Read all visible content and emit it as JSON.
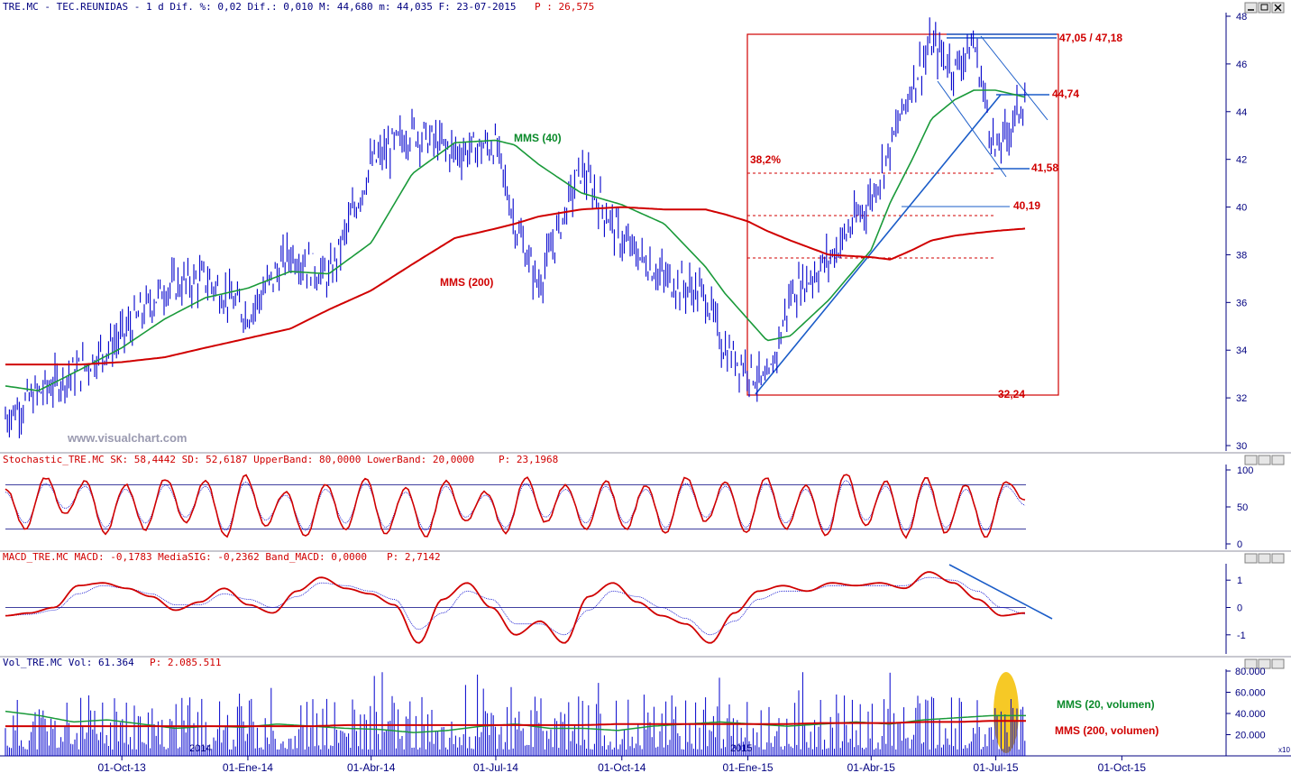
{
  "header": {
    "main": "TRE.MC - TEC.REUNIDAS -  1 d Dif. %: 0,02 Dif.: 0,010 M: 44,680 m: 44,035 F: 23-07-2015",
    "main_p": "P : 26,575",
    "stoch": "Stochastic_TRE.MC SK: 58,4442 SD: 52,6187 UpperBand: 80,0000 LowerBand: 20,0000",
    "stoch_p": "P: 23,1968",
    "macd": "MACD_TRE.MC MACD: -0,1783 MediaSIG: -0,2362 Band_MACD: 0,0000",
    "macd_p": "P: 2,7142",
    "vol": "Vol_TRE.MC Vol: 61.364",
    "vol_p": "P: 2.085.511"
  },
  "watermark": "www.visualchart.com",
  "year_labels": [
    "2014",
    "2015"
  ],
  "x_axis": [
    "01-Oct-13",
    "01-Ene-14",
    "01-Abr-14",
    "01-Jul-14",
    "01-Oct-14",
    "01-Ene-15",
    "01-Abr-15",
    "01-Jul-15",
    "01-Oct-15"
  ],
  "volume_axis_unit": "x10",
  "annotations": {
    "mms40": "MMS (40)",
    "mms200": "MMS (200)",
    "fib382": "38,2%",
    "level_4705": "47,05 / 47,18",
    "level_4474": "44,74",
    "level_4158": "41,58",
    "level_4019": "40,19",
    "level_3224": "32,24",
    "vol_mms20": "MMS (20, volumen)",
    "vol_mms200": "MMS (200, volumen)"
  },
  "colors": {
    "price": "#0000cc",
    "mms40": "#1a9a3a",
    "mms200": "#d00000",
    "axis": "#000080",
    "highlight": "#f5c000"
  },
  "chart_data": [
    {
      "type": "line",
      "title": "TRE.MC - TEC.REUNIDAS - 1 d",
      "ylim": [
        30,
        48
      ],
      "yticks": [
        30,
        32,
        34,
        36,
        38,
        40,
        42,
        44,
        46,
        48
      ],
      "x": [
        "2013-07-08",
        "2013-08-01",
        "2013-09-01",
        "2013-10-01",
        "2013-11-01",
        "2013-12-01",
        "2014-01-01",
        "2014-02-01",
        "2014-03-01",
        "2014-04-01",
        "2014-05-01",
        "2014-06-01",
        "2014-07-01",
        "2014-07-15",
        "2014-08-01",
        "2014-09-01",
        "2014-10-01",
        "2014-11-01",
        "2014-12-01",
        "2014-12-15",
        "2015-01-01",
        "2015-01-15",
        "2015-02-01",
        "2015-03-01",
        "2015-04-01",
        "2015-04-15",
        "2015-05-01",
        "2015-05-15",
        "2015-06-01",
        "2015-06-15",
        "2015-07-01",
        "2015-07-23"
      ],
      "series": [
        {
          "name": "Precio",
          "values": [
            31.2,
            32.2,
            33.2,
            34.6,
            36.6,
            37.0,
            35.5,
            38.1,
            37.0,
            41.8,
            43.2,
            42.3,
            42.6,
            39.3,
            36.7,
            41.6,
            38.6,
            37.0,
            36.3,
            34.0,
            33.3,
            32.4,
            36.3,
            37.8,
            40.4,
            42.5,
            45.2,
            46.8,
            45.8,
            46.9,
            42.2,
            44.7
          ]
        },
        {
          "name": "MMS (40)",
          "values": [
            32.5,
            32.3,
            33.2,
            34.1,
            35.3,
            36.2,
            36.6,
            37.3,
            37.2,
            38.5,
            41.4,
            42.7,
            42.8,
            42.6,
            41.8,
            40.6,
            40.1,
            39.3,
            37.5,
            36.4,
            35.3,
            34.4,
            34.6,
            36.1,
            38.2,
            40.2,
            42.0,
            43.7,
            44.5,
            44.9,
            44.9,
            44.6
          ]
        },
        {
          "name": "MMS (200)",
          "values": [
            33.4,
            33.4,
            33.4,
            33.5,
            33.7,
            34.1,
            34.5,
            34.9,
            35.7,
            36.5,
            37.6,
            38.7,
            39.1,
            39.3,
            39.6,
            39.9,
            40.0,
            39.9,
            39.9,
            39.7,
            39.4,
            39.0,
            38.6,
            38.0,
            37.9,
            37.8,
            38.2,
            38.6,
            38.8,
            38.9,
            39.0,
            39.1
          ]
        }
      ],
      "levels": [
        47.18,
        47.05,
        44.74,
        41.58,
        40.19,
        32.24
      ],
      "fib_levels": [
        41.45,
        39.65,
        37.85
      ]
    },
    {
      "type": "line",
      "title": "Stochastic_TRE.MC",
      "ylim": [
        0,
        100
      ],
      "yticks": [
        0,
        50,
        100
      ],
      "bands": [
        20,
        80
      ],
      "series": [
        {
          "name": "SK",
          "values": [
            75,
            20,
            90,
            40,
            85,
            15,
            80,
            20,
            88,
            30,
            85,
            10,
            92,
            25,
            70,
            10,
            80,
            20,
            90,
            15,
            75,
            10,
            85,
            30,
            70,
            15,
            90,
            30,
            80,
            20,
            85,
            20,
            80,
            15,
            90,
            30,
            85,
            15,
            90,
            20,
            80,
            10,
            95,
            25,
            85,
            10,
            90,
            15,
            80,
            10,
            85,
            58
          ]
        },
        {
          "name": "SD",
          "values": [
            70,
            28,
            82,
            48,
            78,
            22,
            74,
            28,
            80,
            36,
            78,
            18,
            84,
            32,
            66,
            18,
            74,
            28,
            82,
            22,
            70,
            18,
            78,
            36,
            66,
            22,
            82,
            36,
            74,
            28,
            78,
            28,
            74,
            22,
            82,
            36,
            78,
            22,
            82,
            28,
            74,
            18,
            86,
            32,
            78,
            18,
            82,
            22,
            74,
            18,
            78,
            52
          ]
        }
      ]
    },
    {
      "type": "line",
      "title": "MACD_TRE.MC",
      "ylim": [
        -1.6,
        1.6
      ],
      "yticks": [
        -1,
        0,
        1
      ],
      "series": [
        {
          "name": "MACD",
          "values": [
            -0.3,
            -0.2,
            0.0,
            0.8,
            0.9,
            0.7,
            0.4,
            -0.1,
            0.2,
            0.7,
            0.1,
            -0.2,
            0.6,
            1.1,
            0.7,
            0.5,
            0.1,
            -1.3,
            0.3,
            0.9,
            0.0,
            -1.0,
            -0.5,
            -1.3,
            0.4,
            0.9,
            0.2,
            -0.3,
            -0.6,
            -1.3,
            -0.2,
            0.6,
            0.8,
            0.6,
            0.9,
            0.8,
            0.9,
            0.7,
            1.3,
            0.9,
            0.3,
            -0.3,
            -0.2
          ]
        },
        {
          "name": "MediaSIG",
          "values": [
            -0.3,
            -0.25,
            -0.1,
            0.5,
            0.8,
            0.7,
            0.5,
            0.1,
            0.1,
            0.5,
            0.3,
            0.0,
            0.4,
            0.9,
            0.8,
            0.6,
            0.3,
            -0.8,
            -0.2,
            0.6,
            0.3,
            -0.6,
            -0.6,
            -1.0,
            -0.1,
            0.6,
            0.4,
            0.0,
            -0.4,
            -1.0,
            -0.5,
            0.3,
            0.6,
            0.6,
            0.8,
            0.8,
            0.8,
            0.8,
            1.1,
            1.0,
            0.6,
            0.0,
            -0.24
          ]
        }
      ]
    },
    {
      "type": "bar",
      "title": "Vol_TRE.MC",
      "ylim": [
        0,
        80000
      ],
      "yticks": [
        20000,
        40000,
        60000,
        80000
      ],
      "series": [
        {
          "name": "MMS (20, volumen)",
          "values": [
            42,
            38,
            32,
            34,
            30,
            26,
            28,
            27,
            30,
            28,
            26,
            25,
            22,
            24,
            28,
            30,
            26,
            26,
            24,
            28,
            30,
            32,
            30,
            28,
            30,
            32,
            30,
            34,
            36,
            38,
            38
          ]
        },
        {
          "name": "MMS (200, volumen)",
          "values": [
            28,
            28,
            28,
            28,
            28,
            28,
            28,
            28,
            28,
            28,
            29,
            29,
            29,
            29,
            29,
            29,
            29,
            29,
            30,
            30,
            30,
            30,
            30,
            30,
            31,
            31,
            31,
            32,
            32,
            33,
            33
          ]
        }
      ]
    }
  ]
}
